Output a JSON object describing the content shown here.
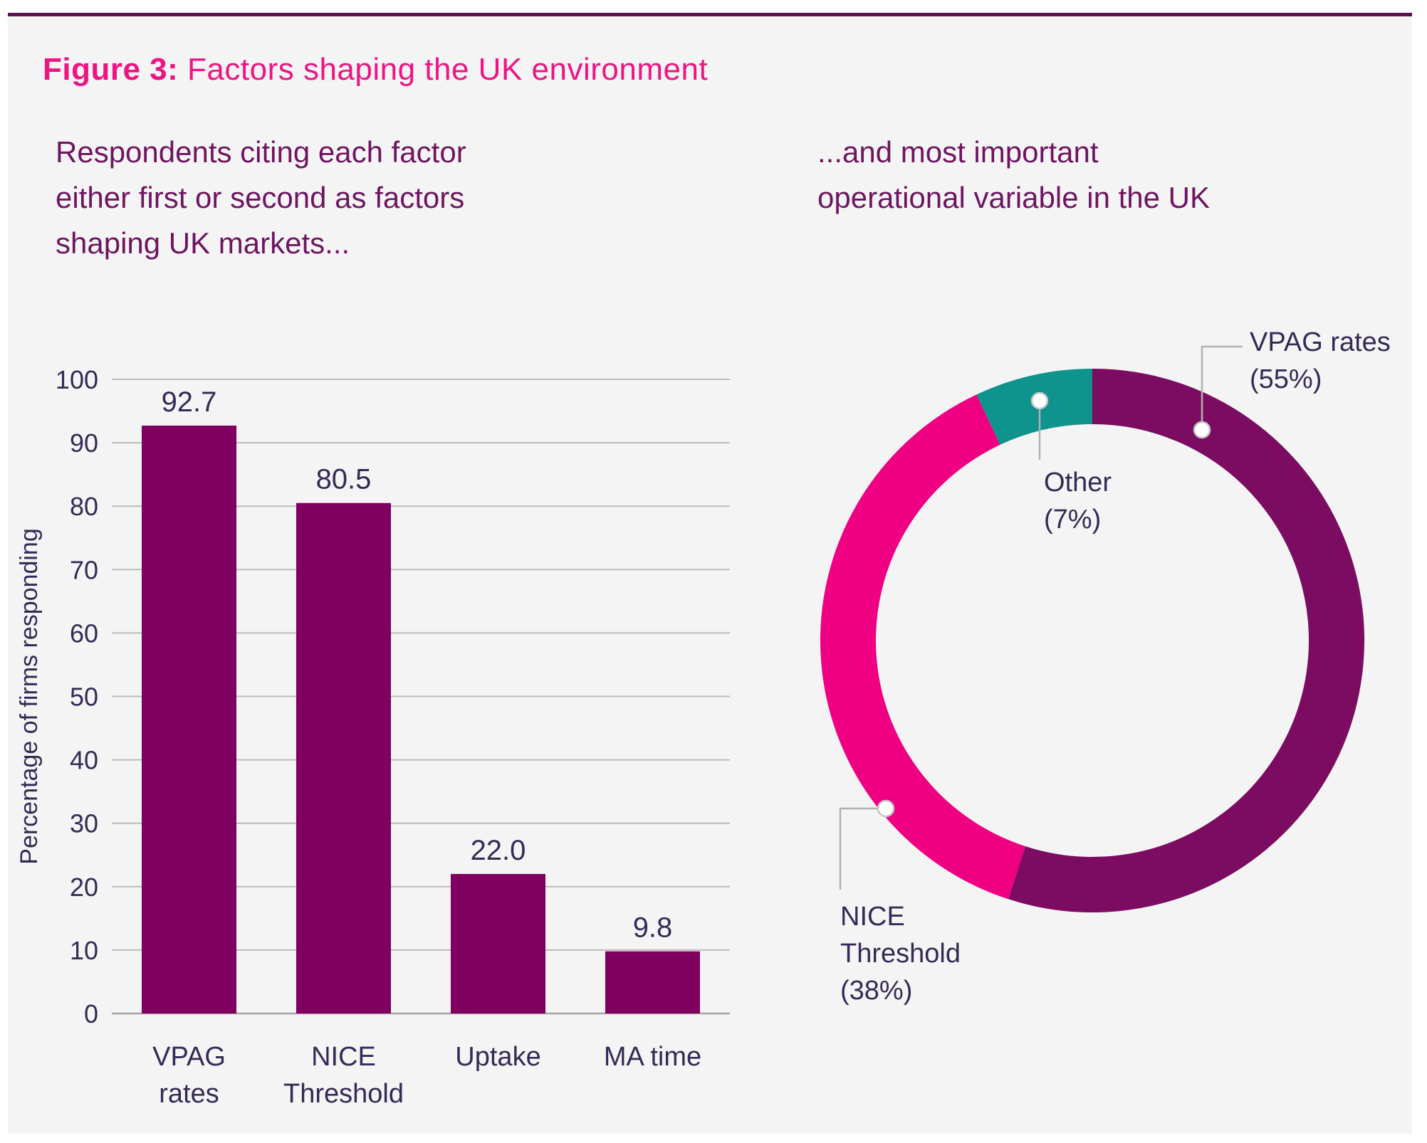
{
  "figure": {
    "label": "Figure 3:",
    "title": " Factors shaping the UK environment"
  },
  "subtitles": {
    "left": [
      "Respondents citing each factor",
      "either first or second as factors",
      "shaping UK markets..."
    ],
    "right": [
      "...and most important",
      "operational variable in the UK"
    ]
  },
  "colors": {
    "panel_background": "#f5f4f5",
    "top_rule": "#5e1150",
    "title_pink": "#ee1583",
    "subtitle_purple": "#6e1560",
    "chart_text": "#352a55",
    "gridline": "#bdbbbd",
    "baseline": "#a5a3a5",
    "leader_line": "#b3b1b3",
    "bar_purple": "#80005f",
    "donut_purple": "#7c0c62",
    "donut_pink": "#ef0082",
    "donut_teal": "#0e938d"
  },
  "chart_data": [
    {
      "type": "bar",
      "title": "Respondents citing each factor either first or second as factors shaping UK markets...",
      "categories": [
        "VPAG rates",
        "NICE Threshold",
        "Uptake",
        "MA time"
      ],
      "categories_wrapped": [
        [
          "VPAG",
          "rates"
        ],
        [
          "NICE",
          "Threshold"
        ],
        [
          "Uptake"
        ],
        [
          "MA time"
        ]
      ],
      "values": [
        92.7,
        80.5,
        22.0,
        9.8
      ],
      "value_labels": [
        "92.7",
        "80.5",
        "22.0",
        "9.8"
      ],
      "xlabel": "",
      "ylabel": "Percentage of firms responding",
      "ylim": [
        0,
        100
      ],
      "ytick_step": 10,
      "ytick_labels": [
        "0",
        "10",
        "20",
        "30",
        "40",
        "50",
        "60",
        "70",
        "80",
        "90",
        "100"
      ],
      "grid": "horizontal lines on",
      "legend": "none",
      "bar_color": "#80005f"
    },
    {
      "type": "pie",
      "subtype": "donut",
      "title": "...and most important operational variable in the UK",
      "start": "top, clockwise",
      "legend": "none, leader-line labels",
      "slices": [
        {
          "label": "VPAG rates",
          "pct": 55,
          "color": "#7c0c62",
          "label_lines": [
            "VPAG rates",
            "(55%)"
          ]
        },
        {
          "label": "NICE Threshold",
          "pct": 38,
          "color": "#ef0082",
          "label_lines": [
            "NICE",
            "Threshold",
            "(38%)"
          ]
        },
        {
          "label": "Other",
          "pct": 7,
          "color": "#0e938d",
          "label_lines": [
            "Other",
            "(7%)"
          ]
        }
      ]
    }
  ]
}
